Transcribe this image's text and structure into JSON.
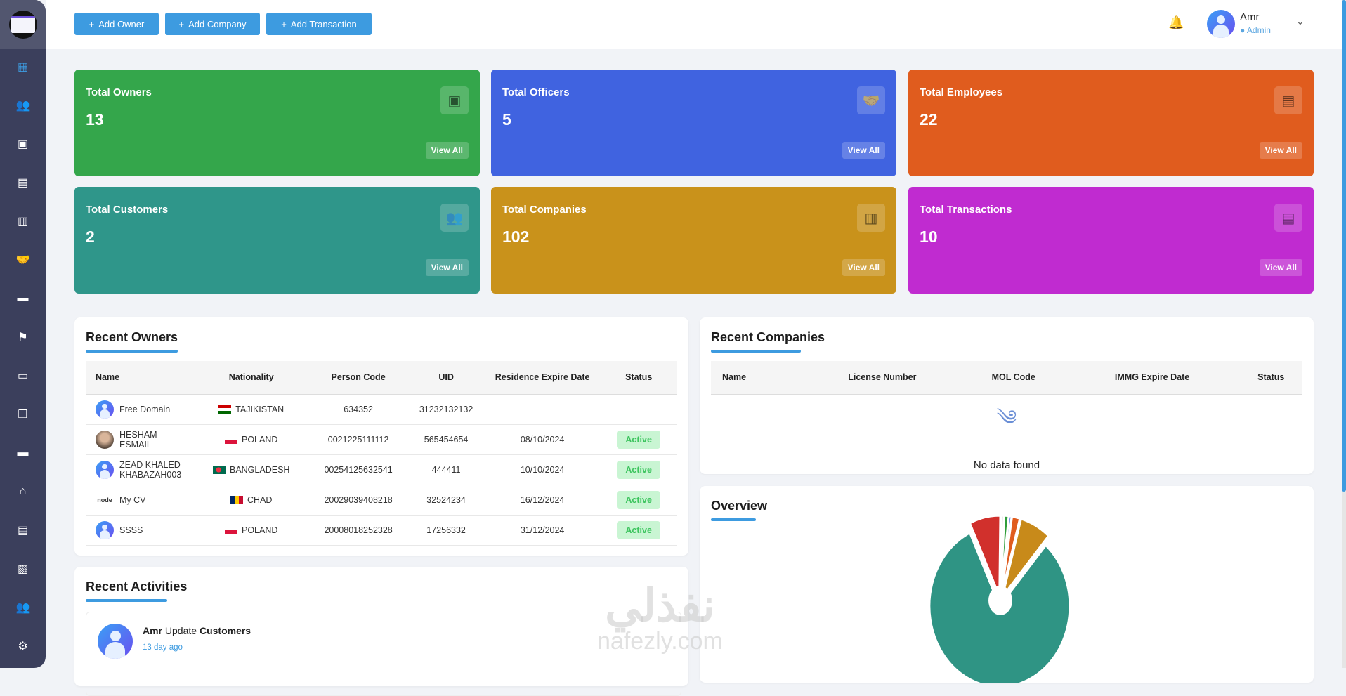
{
  "header": {
    "buttons": [
      "Add Owner",
      "Add Company",
      "Add Transaction"
    ],
    "user": {
      "name": "Amr",
      "role": "Admin"
    }
  },
  "stats": [
    {
      "title": "Total Owners",
      "value": "13",
      "action": "View All",
      "color": "#34a64b",
      "icon": "id-badge-icon"
    },
    {
      "title": "Total Officers",
      "value": "5",
      "action": "View All",
      "color": "#4063e0",
      "icon": "handshake-icon"
    },
    {
      "title": "Total Employees",
      "value": "22",
      "action": "View All",
      "color": "#e05c1e",
      "icon": "id-card-icon"
    },
    {
      "title": "Total Customers",
      "value": "2",
      "action": "View All",
      "color": "#2f968a",
      "icon": "users-icon"
    },
    {
      "title": "Total Companies",
      "value": "102",
      "action": "View All",
      "color": "#c9921b",
      "icon": "building-icon"
    },
    {
      "title": "Total Transactions",
      "value": "10",
      "action": "View All",
      "color": "#c02bd0",
      "icon": "receipt-icon"
    }
  ],
  "recent_owners": {
    "title": "Recent Owners",
    "columns": [
      "Name",
      "Nationality",
      "Person Code",
      "UID",
      "Residence Expire Date",
      "Status"
    ],
    "rows": [
      {
        "name": "Free Domain",
        "nationality": "TAJIKISTAN",
        "person_code": "634352",
        "uid": "31232132132",
        "expire": "",
        "status": ""
      },
      {
        "name": "HESHAM ESMAIL",
        "nationality": "POLAND",
        "person_code": "0021225111112",
        "uid": "565454654",
        "expire": "08/10/2024",
        "status": "Active"
      },
      {
        "name": "ZEAD KHALED KHABAZAH003",
        "nationality": "BANGLADESH",
        "person_code": "00254125632541",
        "uid": "444411",
        "expire": "10/10/2024",
        "status": "Active"
      },
      {
        "name": "My CV",
        "nationality": "CHAD",
        "person_code": "20029039408218",
        "uid": "32524234",
        "expire": "16/12/2024",
        "status": "Active"
      },
      {
        "name": "SSSS",
        "nationality": "POLAND",
        "person_code": "20008018252328",
        "uid": "17256332",
        "expire": "31/12/2024",
        "status": "Active"
      }
    ]
  },
  "recent_companies": {
    "title": "Recent Companies",
    "columns": [
      "Name",
      "License Number",
      "MOL Code",
      "IMMG Expire Date",
      "Status"
    ],
    "empty": "No data found"
  },
  "overview": {
    "title": "Overview"
  },
  "recent_activities": {
    "title": "Recent Activities",
    "items": [
      {
        "user": "Amr",
        "action": "Update",
        "target": "Customers",
        "time": "13 day ago"
      }
    ]
  },
  "watermark": {
    "arabic": "نفذلي",
    "latin": "nafezly.com"
  },
  "chart_data": {
    "type": "pie",
    "title": "Overview",
    "values": [
      80,
      7,
      0.6,
      1,
      0.6,
      1.8,
      7
    ],
    "colors": [
      "#2f9484",
      "#d1302c",
      "#e0e0e0",
      "#2f9d3a",
      "#4063e0",
      "#e05c1e",
      "#c88a1a"
    ]
  }
}
